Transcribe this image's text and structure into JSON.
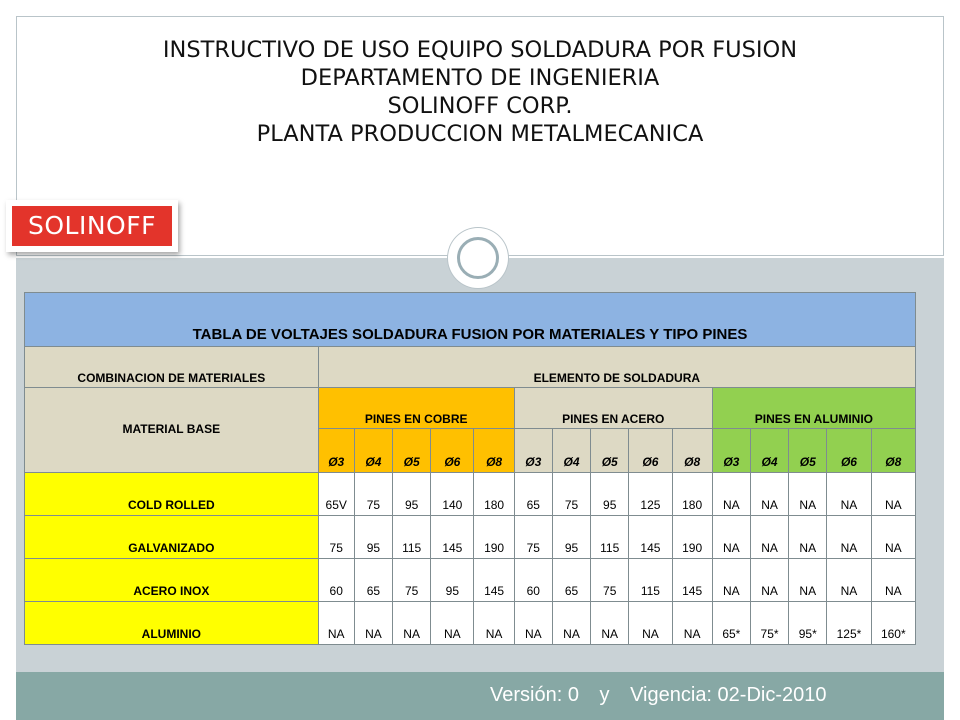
{
  "header": {
    "title_lines": [
      "INSTRUCTIVO DE USO EQUIPO SOLDADURA POR FUSION",
      "DEPARTAMENTO DE INGENIERIA",
      "SOLINOFF CORP.",
      "PLANTA PRODUCCION METALMECANICA"
    ],
    "logo_text": "SOLINOFF"
  },
  "colors": {
    "title_band": "#8db3e2",
    "beige": "#ddd9c4",
    "cobre": "#ffc000",
    "aluminio": "#92d050",
    "row_label": "#ffff00",
    "footer": "#87a8a5",
    "logo_red": "#e3342b"
  },
  "table": {
    "title": "TABLA DE VOLTAJES SOLDADURA FUSION POR MATERIALES Y TIPO PINES",
    "combination_header": "COMBINACION DE MATERIALES",
    "element_header": "ELEMENTO DE SOLDADURA",
    "material_base_header": "MATERIAL BASE",
    "groups": [
      "PINES EN COBRE",
      "PINES EN ACERO",
      "PINES EN ALUMINIO"
    ],
    "diameters": [
      "Ø3",
      "Ø4",
      "Ø5",
      "Ø6",
      "Ø8",
      "Ø3",
      "Ø4",
      "Ø5",
      "Ø6",
      "Ø8",
      "Ø3",
      "Ø4",
      "Ø5",
      "Ø6",
      "Ø8"
    ],
    "rows": [
      {
        "label": "COLD ROLLED",
        "values": [
          "65V",
          "75",
          "95",
          "140",
          "180",
          "65",
          "75",
          "95",
          "125",
          "180",
          "NA",
          "NA",
          "NA",
          "NA",
          "NA"
        ]
      },
      {
        "label": "GALVANIZADO",
        "values": [
          "75",
          "95",
          "115",
          "145",
          "190",
          "75",
          "95",
          "115",
          "145",
          "190",
          "NA",
          "NA",
          "NA",
          "NA",
          "NA"
        ]
      },
      {
        "label": "ACERO INOX",
        "values": [
          "60",
          "65",
          "75",
          "95",
          "145",
          "60",
          "65",
          "75",
          "115",
          "145",
          "NA",
          "NA",
          "NA",
          "NA",
          "NA"
        ]
      },
      {
        "label": "ALUMINIO",
        "values": [
          "NA",
          "NA",
          "NA",
          "NA",
          "NA",
          "NA",
          "NA",
          "NA",
          "NA",
          "NA",
          "65*",
          "75*",
          "95*",
          "125*",
          "160*"
        ]
      }
    ]
  },
  "footer": {
    "version": "Versión: 0",
    "conjunction": "y",
    "validity": "Vigencia: 02-Dic-2010"
  }
}
